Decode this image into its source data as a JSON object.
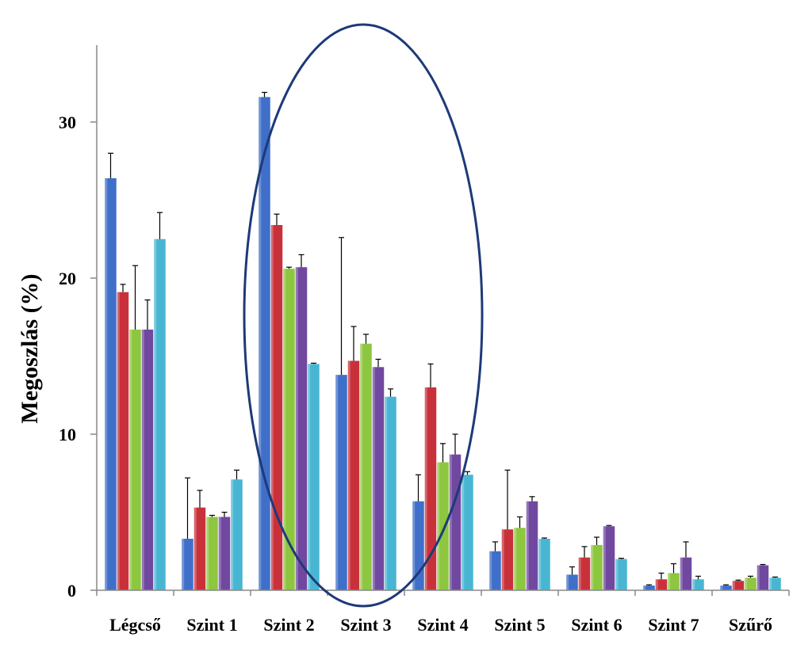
{
  "chart_data": {
    "type": "bar",
    "title": "",
    "xlabel": "",
    "ylabel": "Megoszlás (%)",
    "ylim": [
      0,
      35
    ],
    "yticks": [
      0,
      10,
      20,
      30
    ],
    "grid": false,
    "legend": "none",
    "categories": [
      "Légcső",
      "Szint 1",
      "Szint 2",
      "Szint 3",
      "Szint 4",
      "Szint 5",
      "Szint 6",
      "Szint 7",
      "Szűrő"
    ],
    "series": [
      {
        "color": "#3f6fc9",
        "values": [
          26.4,
          3.3,
          31.6,
          13.8,
          5.7,
          2.5,
          1.0,
          0.3,
          0.3
        ],
        "errors": [
          1.6,
          3.9,
          0.3,
          8.8,
          1.7,
          0.6,
          0.5,
          0.05,
          0.05
        ]
      },
      {
        "color": "#c9313a",
        "values": [
          19.1,
          5.3,
          23.4,
          14.7,
          13.0,
          3.9,
          2.1,
          0.7,
          0.6
        ],
        "errors": [
          0.5,
          1.1,
          0.7,
          2.2,
          1.5,
          3.8,
          0.7,
          0.4,
          0.05
        ]
      },
      {
        "color": "#8dc63f",
        "values": [
          16.7,
          4.7,
          20.6,
          15.8,
          8.2,
          4.0,
          2.9,
          1.1,
          0.8
        ],
        "errors": [
          4.1,
          0.1,
          0.1,
          0.6,
          1.2,
          0.7,
          0.5,
          0.6,
          0.1
        ]
      },
      {
        "color": "#7048a0",
        "values": [
          16.7,
          4.7,
          20.7,
          14.3,
          8.7,
          5.7,
          4.1,
          2.1,
          1.6
        ],
        "errors": [
          1.9,
          0.3,
          0.8,
          0.5,
          1.3,
          0.3,
          0.05,
          1.0,
          0.05
        ]
      },
      {
        "color": "#48b6d2",
        "values": [
          22.5,
          7.1,
          14.5,
          12.4,
          7.4,
          3.3,
          2.0,
          0.7,
          0.8
        ],
        "errors": [
          1.7,
          0.6,
          0.05,
          0.5,
          0.2,
          0.05,
          0.05,
          0.2,
          0.05
        ]
      }
    ],
    "annotation": {
      "shape": "ellipse",
      "color": "#1d3a78",
      "encloses": [
        "Szint 2",
        "Szint 3",
        "Szint 4"
      ]
    }
  }
}
